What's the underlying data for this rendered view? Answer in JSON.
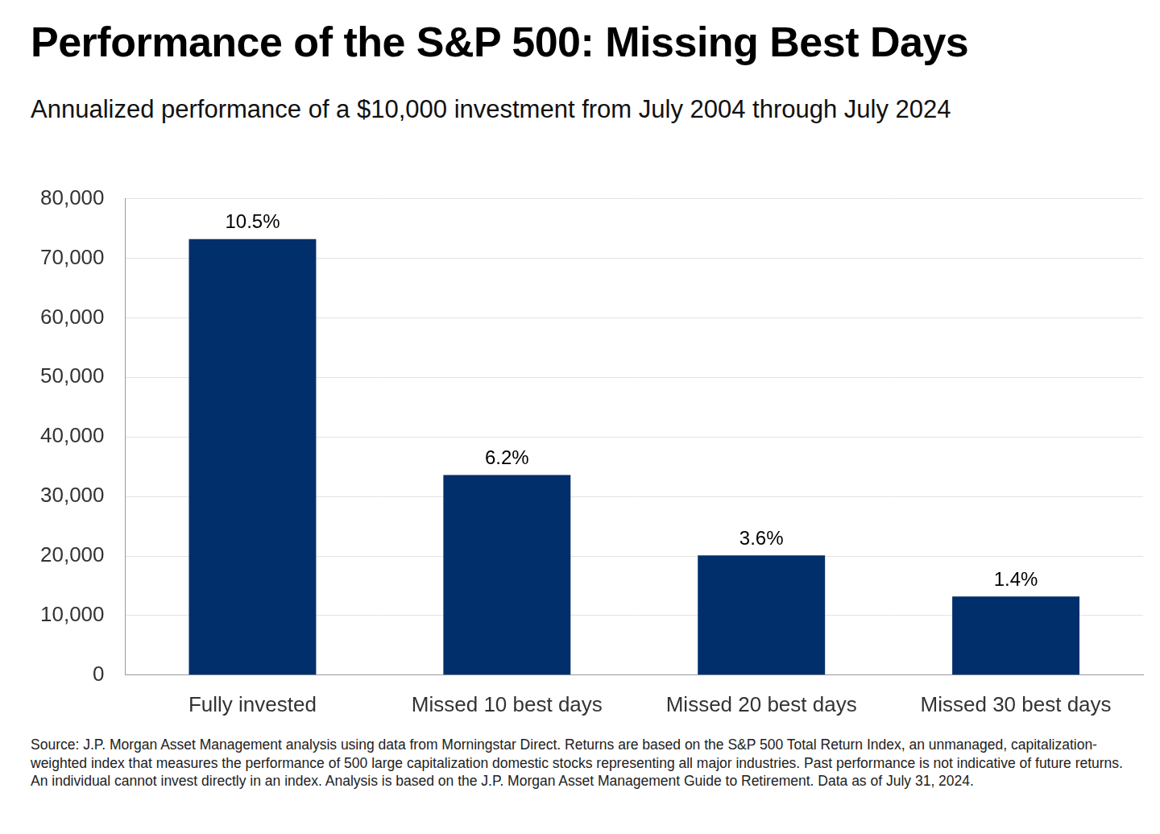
{
  "chart_data": {
    "type": "bar",
    "title": "Performance of the S&P 500: Missing Best Days",
    "subtitle": "Annualized performance of a $10,000 investment from July 2004 through July 2024",
    "categories": [
      "Fully invested",
      "Missed 10 best days",
      "Missed 20 best days",
      "Missed 30 best days"
    ],
    "values": [
      73200,
      33600,
      20100,
      13200
    ],
    "bar_labels": [
      "10.5%",
      "6.2%",
      "3.6%",
      "1.4%"
    ],
    "color": "#012f6b",
    "ylim": [
      0,
      80000
    ],
    "yticks": [
      0,
      {
        "value": 10000,
        "label": "10,000"
      },
      {
        "value": 20000,
        "label": "20,000"
      },
      {
        "value": 30000,
        "label": "30,000"
      },
      {
        "value": 40000,
        "label": "40,000"
      },
      {
        "value": 50000,
        "label": "50,000"
      },
      {
        "value": 60000,
        "label": "60,000"
      },
      {
        "value": 70000,
        "label": "70,000"
      },
      {
        "value": 80000,
        "label": "80,000"
      }
    ],
    "grid": true,
    "source": "Source: J.P. Morgan Asset Management analysis using data from Morningstar Direct. Returns are based on the S&P 500 Total Return Index, an unmanaged, capitalization-weighted index that measures the performance of 500 large capitalization domestic stocks representing all major industries. Past performance is not indicative of future returns. An individual cannot invest directly in an index. Analysis is based on the J.P. Morgan Asset Management Guide to Retirement. Data as of July 31, 2024."
  }
}
